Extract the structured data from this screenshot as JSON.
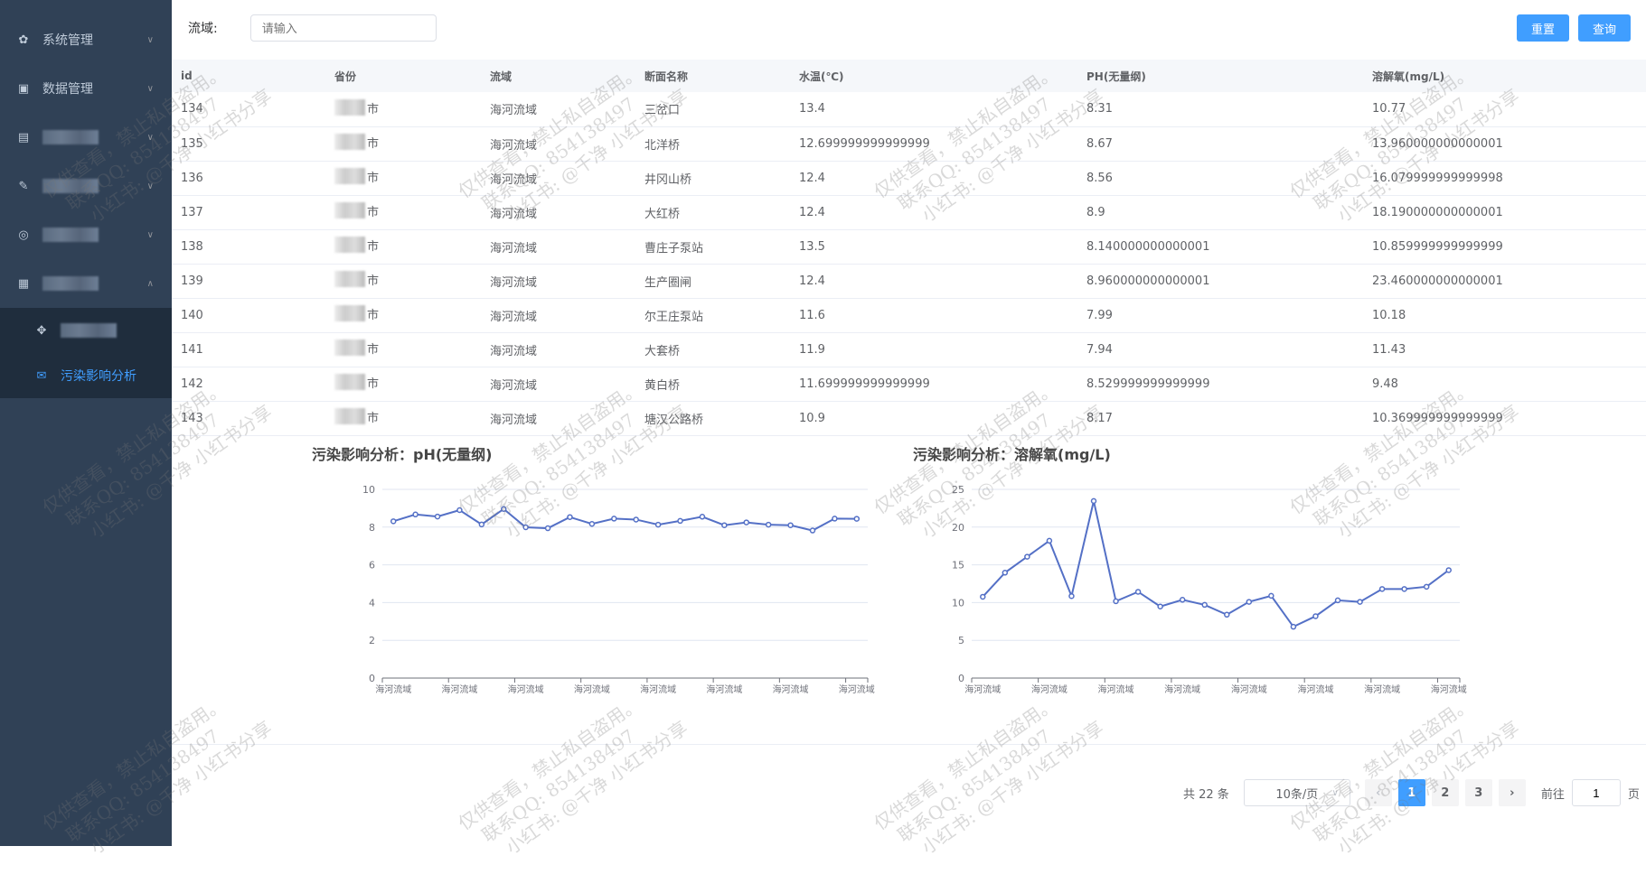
{
  "sidebar": {
    "items": [
      {
        "label": "系统管理",
        "icon": "gear-icon",
        "chevron": "down"
      },
      {
        "label": "数据管理",
        "icon": "briefcase-icon",
        "chevron": "down"
      },
      {
        "label": "",
        "icon": "document-icon",
        "chevron": "down",
        "blurred": true
      },
      {
        "label": "",
        "icon": "edit-icon",
        "chevron": "down",
        "blurred": true
      },
      {
        "label": "",
        "icon": "target-icon",
        "chevron": "down",
        "blurred": true
      },
      {
        "label": "",
        "icon": "calendar-icon",
        "chevron": "up",
        "blurred": true
      }
    ],
    "submenu": [
      {
        "label": "",
        "icon": "move-icon",
        "blurred": true
      },
      {
        "label": "污染影响分析",
        "icon": "mail-icon",
        "active": true
      }
    ]
  },
  "filter": {
    "label": "流域:",
    "placeholder": "请输入",
    "value": ""
  },
  "buttons": {
    "reset": "重置",
    "query": "查询"
  },
  "table": {
    "columns": [
      "id",
      "省份",
      "流域",
      "断面名称",
      "水温(℃)",
      "PH(无量纲)",
      "溶解氧(mg/L)"
    ],
    "rows": [
      [
        "134",
        "市",
        "海河流域",
        "三岔口",
        "13.4",
        "8.31",
        "10.77"
      ],
      [
        "135",
        "市",
        "海河流域",
        "北洋桥",
        "12.699999999999999",
        "8.67",
        "13.960000000000001"
      ],
      [
        "136",
        "市",
        "海河流域",
        "井冈山桥",
        "12.4",
        "8.56",
        "16.079999999999998"
      ],
      [
        "137",
        "市",
        "海河流域",
        "大红桥",
        "12.4",
        "8.9",
        "18.190000000000001"
      ],
      [
        "138",
        "市",
        "海河流域",
        "曹庄子泵站",
        "13.5",
        "8.140000000000001",
        "10.859999999999999"
      ],
      [
        "139",
        "市",
        "海河流域",
        "生产圈闸",
        "12.4",
        "8.960000000000001",
        "23.460000000000001"
      ],
      [
        "140",
        "市",
        "海河流域",
        "尔王庄泵站",
        "11.6",
        "7.99",
        "10.18"
      ],
      [
        "141",
        "市",
        "海河流域",
        "大套桥",
        "11.9",
        "7.94",
        "11.43"
      ],
      [
        "142",
        "市",
        "海河流域",
        "黄白桥",
        "11.699999999999999",
        "8.529999999999999",
        "9.48"
      ],
      [
        "143",
        "市",
        "海河流域",
        "塘汉公路桥",
        "10.9",
        "8.17",
        "10.369999999999999"
      ]
    ]
  },
  "chart_data": [
    {
      "type": "line",
      "title": "污染影响分析：pH(无量纲)",
      "ylim": [
        0,
        10
      ],
      "yticks": [
        0,
        2,
        4,
        6,
        8,
        10
      ],
      "x_tick_label": "海河流域",
      "grid": true,
      "color": "#5470c6",
      "values": [
        8.31,
        8.67,
        8.56,
        8.9,
        8.14,
        8.96,
        7.99,
        7.94,
        8.53,
        8.17,
        8.45,
        8.4,
        8.13,
        8.33,
        8.55,
        8.1,
        8.25,
        8.13,
        8.1,
        7.82,
        8.45,
        8.44
      ]
    },
    {
      "type": "line",
      "title": "污染影响分析：溶解氧(mg/L)",
      "ylim": [
        0,
        25
      ],
      "yticks": [
        0,
        5,
        10,
        15,
        20,
        25
      ],
      "x_tick_label": "海河流域",
      "grid": true,
      "color": "#5470c6",
      "values": [
        10.77,
        13.96,
        16.08,
        18.19,
        10.86,
        23.46,
        10.18,
        11.43,
        9.48,
        10.37,
        9.7,
        8.4,
        10.1,
        10.9,
        6.8,
        8.2,
        10.3,
        10.1,
        11.8,
        11.8,
        12.1,
        14.3
      ]
    }
  ],
  "pagination": {
    "total": "共 22 条",
    "page_size": "10条/页",
    "pages": [
      "1",
      "2",
      "3"
    ],
    "current": 1,
    "goto_label": "前往",
    "goto_value": "1",
    "page_suffix": "页"
  },
  "watermark": {
    "lines": [
      "仅供查看，禁止私自盗用。",
      "联系QQ: 854138497",
      "小红书: @千净  小红书分享"
    ]
  }
}
